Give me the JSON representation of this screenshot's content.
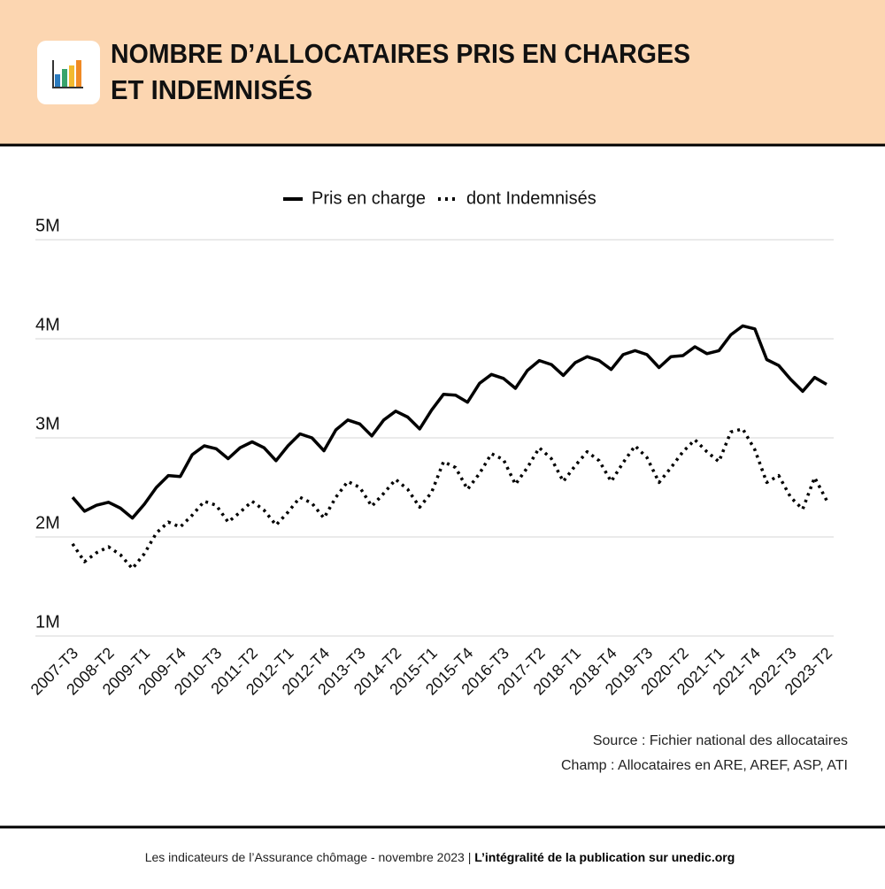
{
  "chart_data": {
    "type": "line",
    "title": [
      "NOMBRE D’ALLOCATAIRES PRIS EN CHARGES",
      "ET INDEMNISÉS"
    ],
    "categories": [
      "2007-T3",
      null,
      null,
      "2008-T2",
      null,
      null,
      "2009-T1",
      null,
      null,
      "2009-T4",
      null,
      null,
      "2010-T3",
      null,
      null,
      "2011-T2",
      null,
      null,
      "2012-T1",
      null,
      null,
      "2012-T4",
      null,
      null,
      "2013-T3",
      null,
      null,
      "2014-T2",
      null,
      null,
      "2015-T1",
      null,
      null,
      "2015-T4",
      null,
      null,
      "2016-T3",
      null,
      null,
      "2017-T2",
      null,
      null,
      "2018-T1",
      null,
      null,
      "2018-T4",
      null,
      null,
      "2019-T3",
      null,
      null,
      "2020-T2",
      null,
      null,
      "2021-T1",
      null,
      null,
      "2021-T4",
      null,
      null,
      "2022-T3",
      null,
      null,
      "2023-T2"
    ],
    "series": [
      {
        "name": "Pris en charge",
        "color": "#000000",
        "line_style": "solid",
        "values": [
          2400000,
          2260000,
          2320000,
          2350000,
          2290000,
          2190000,
          2330000,
          2500000,
          2620000,
          2610000,
          2830000,
          2920000,
          2890000,
          2790000,
          2900000,
          2960000,
          2900000,
          2770000,
          2920000,
          3040000,
          3000000,
          2870000,
          3080000,
          3180000,
          3140000,
          3020000,
          3180000,
          3270000,
          3210000,
          3090000,
          3280000,
          3440000,
          3430000,
          3360000,
          3550000,
          3640000,
          3600000,
          3500000,
          3680000,
          3780000,
          3740000,
          3630000,
          3760000,
          3820000,
          3780000,
          3690000,
          3840000,
          3880000,
          3840000,
          3710000,
          3820000,
          3830000,
          3920000,
          3850000,
          3880000,
          4040000,
          4130000,
          4100000,
          3790000,
          3730000,
          3590000,
          3470000,
          3610000,
          3540000
        ]
      },
      {
        "name": "dont Indemnisés",
        "color": "#000000",
        "line_style": "dotted",
        "values": [
          1930000,
          1750000,
          1840000,
          1900000,
          1820000,
          1680000,
          1830000,
          2040000,
          2150000,
          2100000,
          2220000,
          2360000,
          2320000,
          2150000,
          2250000,
          2360000,
          2270000,
          2120000,
          2250000,
          2400000,
          2340000,
          2190000,
          2400000,
          2560000,
          2500000,
          2310000,
          2440000,
          2580000,
          2480000,
          2300000,
          2450000,
          2760000,
          2700000,
          2480000,
          2640000,
          2840000,
          2780000,
          2530000,
          2700000,
          2900000,
          2790000,
          2560000,
          2720000,
          2860000,
          2770000,
          2560000,
          2750000,
          2920000,
          2800000,
          2550000,
          2700000,
          2860000,
          2980000,
          2860000,
          2760000,
          3060000,
          3090000,
          2880000,
          2550000,
          2620000,
          2400000,
          2280000,
          2600000,
          2370000
        ]
      }
    ],
    "ylim": [
      1000000,
      5000000
    ],
    "yticks": [
      {
        "value": 1000000,
        "label": "1M"
      },
      {
        "value": 2000000,
        "label": "2M"
      },
      {
        "value": 3000000,
        "label": "3M"
      },
      {
        "value": 4000000,
        "label": "4M"
      },
      {
        "value": 5000000,
        "label": "5M"
      }
    ],
    "grid": true,
    "legend": "top",
    "source": "Source : Fichier national des allocataires",
    "scope": "Champ : Allocataires en ARE, AREF, ASP, ATI"
  },
  "footer": {
    "text": "Les indicateurs de l’Assurance chômage - novembre 2023 | ",
    "link": "L’intégralité de la publication sur unedic.org"
  }
}
